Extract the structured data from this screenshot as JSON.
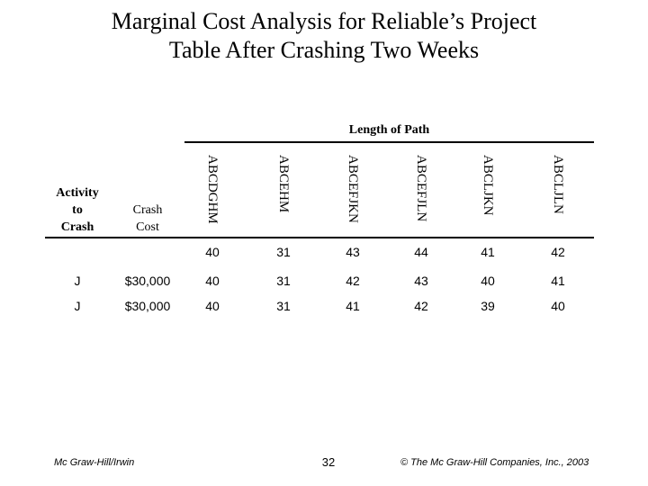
{
  "slide": {
    "title_line1": "Marginal Cost Analysis for Reliable’s Project",
    "title_line2": "Table After Crashing Two Weeks",
    "length_of_path_label": "Length of Path"
  },
  "table": {
    "activity_header": [
      "Activity",
      "to",
      "Crash"
    ],
    "cost_header": [
      "Crash",
      "Cost"
    ],
    "paths": [
      "ABCDGHM",
      "ABCEHM",
      "ABCEFJKN",
      "ABCEFJLN",
      "ABCLJKN",
      "ABCLJLN"
    ],
    "rows": [
      {
        "activity": "",
        "cost": "",
        "lengths": [
          "40",
          "31",
          "43",
          "44",
          "41",
          "42"
        ]
      },
      {
        "activity": "J",
        "cost": "$30,000",
        "lengths": [
          "40",
          "31",
          "42",
          "43",
          "40",
          "41"
        ]
      },
      {
        "activity": "J",
        "cost": "$30,000",
        "lengths": [
          "40",
          "31",
          "41",
          "42",
          "39",
          "40"
        ]
      }
    ]
  },
  "footer": {
    "publisher": "Mc Graw-Hill/Irwin",
    "page_number": "32",
    "copyright": "© The Mc Graw-Hill Companies, Inc., 2003"
  }
}
